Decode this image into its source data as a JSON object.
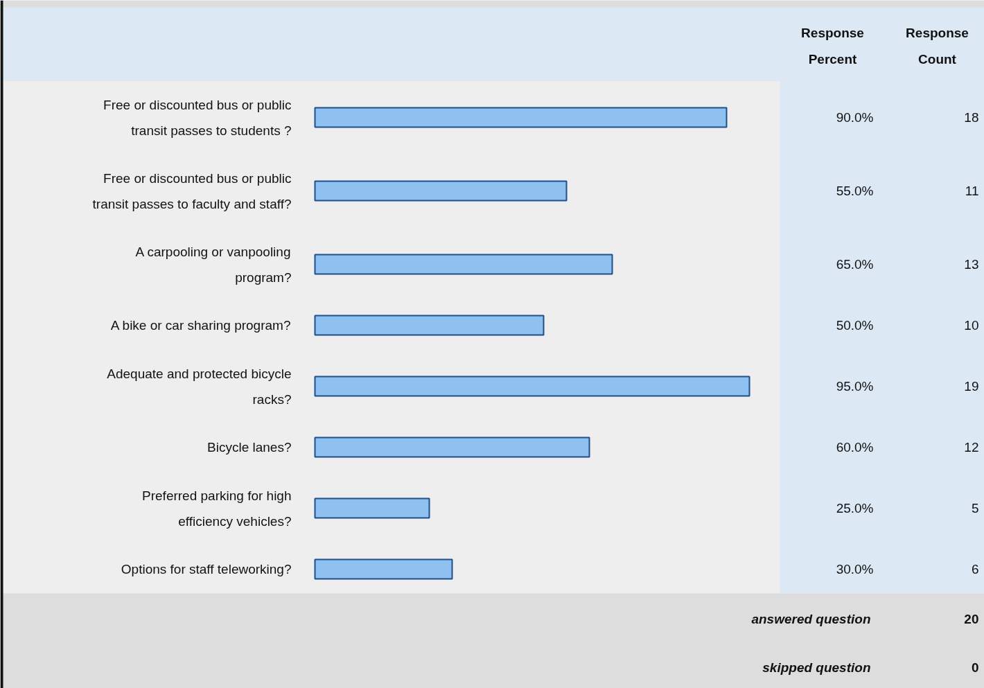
{
  "chart_data": {
    "type": "bar",
    "orientation": "horizontal",
    "categories": [
      "Free or discounted bus or public\ntransit passes to students ?",
      "Free or discounted bus or public\ntransit passes to faculty and staff?",
      "A carpooling or vanpooling\nprogram?",
      "A bike or car sharing program?",
      "Adequate and protected bicycle\nracks?",
      "Bicycle lanes?",
      "Preferred parking for high\nefficiency vehicles?",
      "Options for staff teleworking?"
    ],
    "values": [
      90,
      55,
      65,
      50,
      95,
      60,
      25,
      30
    ],
    "value_labels": [
      "90.0%",
      "55.0%",
      "65.0%",
      "50.0%",
      "95.0%",
      "60.0%",
      "25.0%",
      "30.0%"
    ],
    "color": "#8ec0f0",
    "annotations": [
      "Response Percent",
      "Response Count",
      "18",
      "11",
      "13",
      "10",
      "19",
      "12",
      "5",
      "6",
      "answered question",
      "20",
      "skipped question",
      "0"
    ]
  }
}
